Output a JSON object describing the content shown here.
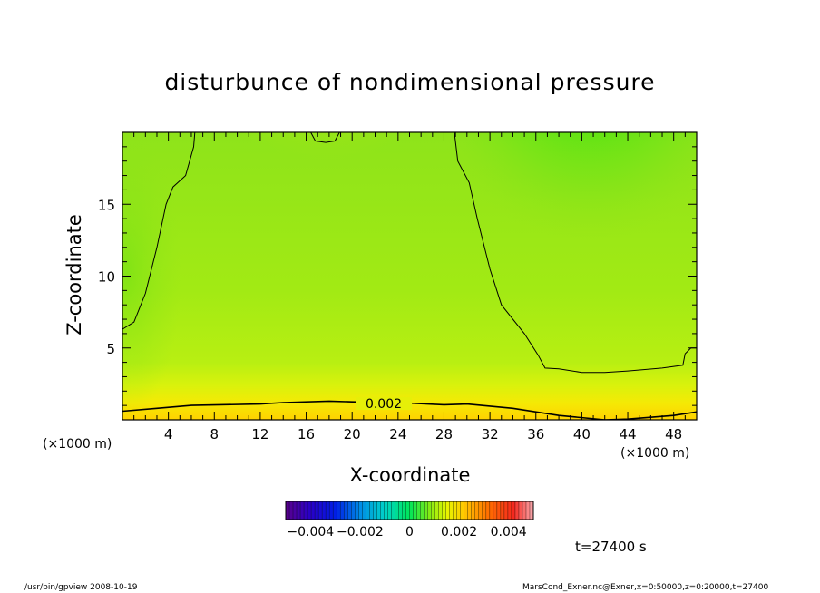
{
  "header": {
    "title": "disturbunce of nondimensional pressure"
  },
  "chart_data": {
    "type": "heatmap",
    "title": "disturbunce of nondimensional pressure",
    "xlabel": "X-coordinate",
    "ylabel": "Z-coordinate",
    "x_unit": "(×1000 m)",
    "y_unit": "(×1000 m)",
    "xlim": [
      0,
      50
    ],
    "ylim": [
      0,
      20
    ],
    "x_ticks": [
      4,
      8,
      12,
      16,
      20,
      24,
      28,
      32,
      36,
      40,
      44,
      48
    ],
    "y_ticks": [
      5,
      10,
      15
    ],
    "contour_label": "0.002",
    "colorbar": {
      "range": [
        -0.005,
        0.005
      ],
      "tick_labels": [
        "−0.004",
        "−0.002",
        "0",
        "0.002",
        "0.004"
      ],
      "tick_values": [
        -0.004,
        -0.002,
        0,
        0.002,
        0.004
      ]
    },
    "contours": [
      {
        "name": "c1",
        "points": [
          [
            0,
            6.3
          ],
          [
            1,
            6.8
          ],
          [
            2,
            8.8
          ],
          [
            3,
            12.0
          ],
          [
            3.8,
            15.0
          ],
          [
            4.4,
            16.2
          ],
          [
            5.5,
            17.0
          ],
          [
            6.2,
            19.0
          ],
          [
            6.3,
            20
          ]
        ]
      },
      {
        "name": "c2",
        "points": [
          [
            28.9,
            20
          ],
          [
            29.2,
            18.0
          ],
          [
            30.2,
            16.5
          ],
          [
            30.9,
            14.0
          ],
          [
            32.0,
            10.5
          ],
          [
            33.0,
            8.0
          ],
          [
            35.0,
            6.0
          ],
          [
            36.2,
            4.5
          ],
          [
            36.8,
            3.6
          ],
          [
            38,
            3.55
          ],
          [
            40,
            3.3
          ],
          [
            42,
            3.3
          ],
          [
            44,
            3.4
          ],
          [
            47,
            3.6
          ],
          [
            48.8,
            3.8
          ],
          [
            49,
            4.6
          ],
          [
            49.5,
            5.0
          ],
          [
            50,
            5.0
          ]
        ]
      },
      {
        "name": "c3",
        "points": [
          [
            0,
            0.6
          ],
          [
            3,
            0.8
          ],
          [
            6,
            1.0
          ],
          [
            12,
            1.1
          ],
          [
            14,
            1.2
          ],
          [
            18,
            1.3
          ],
          [
            20,
            1.25
          ],
          [
            24,
            1.2
          ],
          [
            28,
            1.05
          ],
          [
            30,
            1.1
          ],
          [
            34,
            0.8
          ],
          [
            38,
            0.3
          ],
          [
            42,
            0.0
          ],
          [
            44,
            0.05
          ],
          [
            48,
            0.3
          ],
          [
            50,
            0.55
          ]
        ]
      },
      {
        "name": "c4",
        "points": [
          [
            16.4,
            20
          ],
          [
            16.8,
            19.4
          ],
          [
            17.7,
            19.3
          ],
          [
            18.5,
            19.4
          ],
          [
            18.9,
            20
          ]
        ]
      }
    ]
  },
  "annotations": {
    "time": "t=27400 s",
    "footer_left": "/usr/bin/gpview   2008-10-19",
    "footer_right": "MarsCond_Exner.nc@Exner,x=0:50000,z=0:20000,t=27400"
  }
}
